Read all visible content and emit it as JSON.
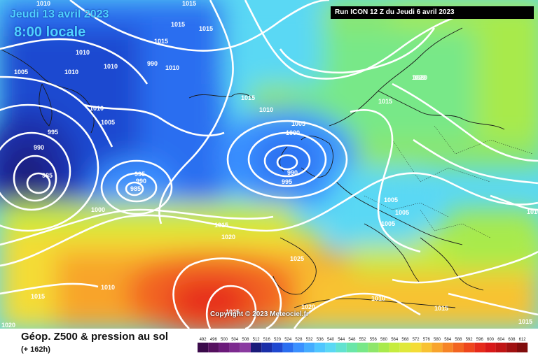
{
  "header": {
    "date": "Jeudi 13 avril 2023",
    "time": "8:00 locale",
    "run": "Run ICON 12 Z du Jeudi 6 avril 2023"
  },
  "copyright": "Copyright © 2023 Meteociel.fr",
  "footer": {
    "title": "Géop. Z500 & pression au sol",
    "subtitle": "(+ 162h)"
  },
  "legend": {
    "values": [
      "492",
      "496",
      "500",
      "504",
      "508",
      "512",
      "516",
      "520",
      "524",
      "528",
      "532",
      "536",
      "540",
      "544",
      "548",
      "552",
      "556",
      "560",
      "564",
      "568",
      "572",
      "576",
      "580",
      "584",
      "588",
      "592",
      "596",
      "600",
      "604",
      "608",
      "612"
    ],
    "colors": [
      "#3a0a4a",
      "#55105f",
      "#6b1a7a",
      "#7d2a8f",
      "#8a3aa0",
      "#1a1a7a",
      "#1a2ea8",
      "#1f48d0",
      "#2a6ef0",
      "#3a90ff",
      "#44acff",
      "#4fc6ff",
      "#5ad8f4",
      "#62e2d0",
      "#6ae6a8",
      "#78e888",
      "#8ee66a",
      "#a8ea4c",
      "#c6ec3e",
      "#e0e83a",
      "#f4dc36",
      "#f8c232",
      "#f8a42c",
      "#f68426",
      "#f26420",
      "#ee461c",
      "#e62a1a",
      "#d81818",
      "#c01414",
      "#a01010",
      "#800c0c"
    ]
  },
  "map": {
    "isobar_labels": [
      {
        "text": "1015"
      },
      {
        "text": "1010"
      },
      {
        "text": "1015"
      },
      {
        "text": "1015"
      },
      {
        "text": "1015"
      },
      {
        "text": "1010"
      },
      {
        "text": "1010"
      },
      {
        "text": "1005"
      },
      {
        "text": "1010"
      },
      {
        "text": "990"
      },
      {
        "text": "1010"
      },
      {
        "text": "1010"
      },
      {
        "text": "1015"
      },
      {
        "text": "1010"
      },
      {
        "text": "1005"
      },
      {
        "text": "995"
      },
      {
        "text": "990"
      },
      {
        "text": "985"
      },
      {
        "text": "995"
      },
      {
        "text": "990"
      },
      {
        "text": "985"
      },
      {
        "text": "1000"
      },
      {
        "text": "1005"
      },
      {
        "text": "1000"
      },
      {
        "text": "990"
      },
      {
        "text": "995"
      },
      {
        "text": "1020"
      },
      {
        "text": "1015"
      },
      {
        "text": "1005"
      },
      {
        "text": "1005"
      },
      {
        "text": "1005"
      },
      {
        "text": "1015"
      },
      {
        "text": "1020"
      },
      {
        "text": "1025"
      },
      {
        "text": "1010"
      },
      {
        "text": "1015"
      },
      {
        "text": "1020"
      },
      {
        "text": "1025"
      },
      {
        "text": "1020"
      },
      {
        "text": "1010"
      },
      {
        "text": "1015"
      },
      {
        "text": "1015"
      },
      {
        "text": "1010"
      },
      {
        "text": "1020"
      }
    ]
  }
}
